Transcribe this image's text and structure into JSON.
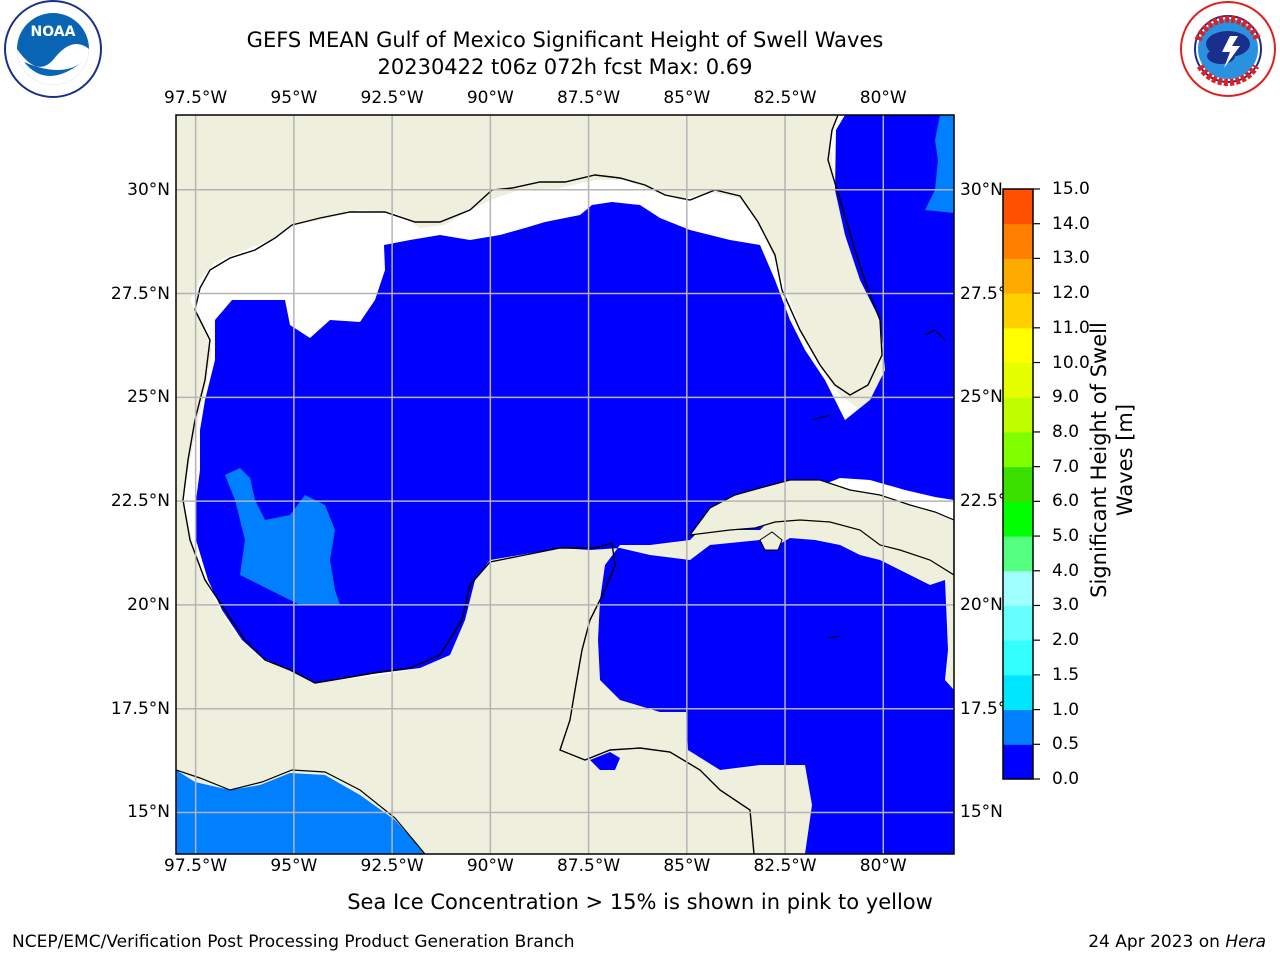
{
  "title": {
    "line1": "GEFS MEAN Gulf of Mexico Significant Height of Swell Waves",
    "line2": "20230422 t06z 072h fcst   Max: 0.69"
  },
  "logos": {
    "left": {
      "name": "noaa-logo",
      "text": "NOAA",
      "ring_text": "NATIONAL OCEANIC AND ATMOSPHERIC ADMINISTRATION · U.S. DEPARTMENT OF COMMERCE"
    },
    "right": {
      "name": "nws-logo",
      "ring_text": "NATIONAL WEATHER SERVICE"
    }
  },
  "map": {
    "lon_labels": [
      "97.5°W",
      "95°W",
      "92.5°W",
      "90°W",
      "87.5°W",
      "85°W",
      "82.5°W",
      "80°W"
    ],
    "lat_labels_left": [
      "30°N",
      "27.5°N",
      "25°N",
      "22.5°N",
      "20°N",
      "17.5°N",
      "15°N"
    ],
    "lat_labels_right": [
      "30°N",
      "27.5°N",
      "25°N",
      "22.5°N",
      "20°N",
      "17.5°N",
      "15°N"
    ],
    "lon_values": [
      -97.5,
      -95,
      -92.5,
      -90,
      -87.5,
      -85,
      -82.5,
      -80
    ],
    "lat_values": [
      30,
      27.5,
      25,
      22.5,
      20,
      17.5,
      15
    ],
    "extent": {
      "lon": [
        -98,
        -78.2
      ],
      "lat": [
        14,
        31.8
      ]
    },
    "colors": {
      "land": "#efefdd",
      "ocean_0_0.5": "#0000ff",
      "ocean_0.5_1.0": "#0080ff",
      "grid": "#b4b4b4",
      "coast": "#000000"
    }
  },
  "colorbar": {
    "ticks": [
      "0.0",
      "0.5",
      "1.0",
      "1.5",
      "2.0",
      "3.0",
      "4.0",
      "5.0",
      "6.0",
      "7.0",
      "8.0",
      "9.0",
      "10.0",
      "11.0",
      "12.0",
      "13.0",
      "14.0",
      "15.0"
    ],
    "colors": [
      "#0000ff",
      "#0080ff",
      "#00e6ff",
      "#33ffff",
      "#66ffff",
      "#a0ffff",
      "#55ff80",
      "#00ff00",
      "#3ce000",
      "#80ff00",
      "#c0ff00",
      "#e6ff00",
      "#ffff00",
      "#ffd000",
      "#ffaa00",
      "#ff8000",
      "#ff5000",
      "#ff2000",
      "#ff0000"
    ],
    "label_line1": "Significant Height of Swell",
    "label_line2": "Waves [m]"
  },
  "note": "Sea Ice Concentration > 15% is shown in pink to yellow",
  "footer": {
    "left": "NCEP/EMC/Verification Post Processing Product Generation Branch",
    "right_date": "24 Apr 2023 on ",
    "right_host": "Hera"
  }
}
